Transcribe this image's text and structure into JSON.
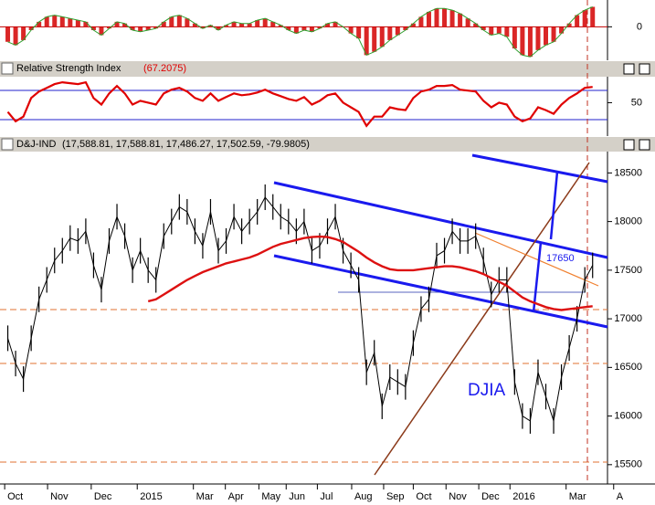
{
  "chart_data": [
    {
      "type": "bar",
      "color": "#d40000",
      "line_color": "#2e9e2e",
      "xlim": [
        -1,
        83
      ],
      "ylim": [
        -190,
        150
      ],
      "yticks": [
        0
      ],
      "values": [
        -90,
        -110,
        -80,
        -20,
        30,
        60,
        70,
        60,
        50,
        40,
        30,
        -20,
        -50,
        -10,
        30,
        20,
        -20,
        -30,
        -20,
        -10,
        30,
        60,
        70,
        50,
        20,
        -10,
        10,
        -20,
        10,
        30,
        20,
        20,
        40,
        50,
        30,
        10,
        -20,
        -40,
        -20,
        -30,
        -10,
        20,
        30,
        0,
        -40,
        -70,
        -170,
        -150,
        -120,
        -80,
        -50,
        -20,
        20,
        60,
        90,
        110,
        110,
        100,
        80,
        50,
        20,
        -20,
        -50,
        -40,
        -60,
        -130,
        -170,
        -180,
        -140,
        -110,
        -90,
        -40,
        20,
        70,
        100,
        120
      ]
    },
    {
      "type": "line",
      "title": "Relative Strength Index",
      "subtitle": "(67.2075)",
      "color": "#e00000",
      "xlim": [
        -1,
        83
      ],
      "ylim": [
        16,
        76
      ],
      "yticks": [
        50
      ],
      "values": [
        40,
        30,
        35,
        55,
        62,
        66,
        70,
        72,
        71,
        70,
        72,
        55,
        48,
        60,
        68,
        60,
        48,
        52,
        50,
        48,
        60,
        64,
        66,
        62,
        55,
        52,
        60,
        52,
        56,
        60,
        58,
        59,
        61,
        64,
        60,
        57,
        54,
        52,
        56,
        48,
        52,
        58,
        60,
        50,
        45,
        40,
        25,
        35,
        35,
        45,
        43,
        42,
        55,
        62,
        64,
        68,
        68,
        69,
        64,
        63,
        62,
        52,
        45,
        50,
        48,
        35,
        30,
        33,
        45,
        42,
        38,
        48,
        55,
        60,
        66,
        67
      ]
    },
    {
      "type": "line",
      "title": "D&J-IND",
      "subtitle": "(17,588.81, 17,588.81, 17,486.27, 17,502.59, -79.9805)",
      "annotations": [
        "DJIA",
        "17650"
      ],
      "xlim": [
        -1,
        83
      ],
      "ylim": [
        15320,
        18710
      ],
      "yticks": [
        15500,
        16000,
        16500,
        17000,
        17500,
        18000,
        18500
      ],
      "xticks": [
        {
          "value": -0.4,
          "label": "Oct"
        },
        {
          "value": 5.1,
          "label": "Nov"
        },
        {
          "value": 10.7,
          "label": "Dec"
        },
        {
          "value": 16.6,
          "label": "2015"
        },
        {
          "value": 23.8,
          "label": "Mar"
        },
        {
          "value": 27.9,
          "label": "Apr"
        },
        {
          "value": 32.2,
          "label": "May"
        },
        {
          "value": 35.7,
          "label": "Jun"
        },
        {
          "value": 39.7,
          "label": "Jul"
        },
        {
          "value": 44.1,
          "label": "Aug"
        },
        {
          "value": 48.2,
          "label": "Sep"
        },
        {
          "value": 52,
          "label": "Oct"
        },
        {
          "value": 56.2,
          "label": "Nov"
        },
        {
          "value": 60.4,
          "label": "Dec"
        },
        {
          "value": 64.4,
          "label": "2016"
        },
        {
          "value": 71.6,
          "label": "Mar"
        },
        {
          "value": 77.7,
          "label": "A"
        }
      ],
      "series": [
        {
          "color": "#000000",
          "values": [
            16800,
            16540,
            16380,
            16800,
            17200,
            17400,
            17600,
            17700,
            17830,
            17800,
            17900,
            17550,
            17300,
            17800,
            18050,
            17850,
            17500,
            17700,
            17500,
            17400,
            17850,
            18000,
            18150,
            18100,
            17900,
            17750,
            18100,
            17700,
            17800,
            18050,
            17900,
            18000,
            18100,
            18250,
            18150,
            18050,
            18000,
            17900,
            18000,
            17700,
            17750,
            17900,
            18050,
            17700,
            17550,
            17400,
            16450,
            16650,
            16100,
            16400,
            16350,
            16300,
            16750,
            17100,
            17200,
            17650,
            17700,
            17900,
            17800,
            17800,
            17850,
            17600,
            17250,
            17400,
            17400,
            16350,
            16000,
            15950,
            16450,
            16200,
            15950,
            16400,
            16700,
            17000,
            17400,
            17550
          ]
        },
        {
          "color": "#dd1111",
          "values": [
            null,
            null,
            null,
            null,
            null,
            null,
            null,
            null,
            null,
            null,
            null,
            null,
            null,
            null,
            null,
            null,
            null,
            null,
            17180,
            17200,
            17250,
            17300,
            17350,
            17400,
            17440,
            17480,
            17510,
            17540,
            17570,
            17590,
            17610,
            17630,
            17660,
            17700,
            17740,
            17770,
            17790,
            17810,
            17830,
            17840,
            17845,
            17840,
            17820,
            17790,
            17740,
            17690,
            17630,
            17580,
            17540,
            17510,
            17500,
            17500,
            17500,
            17510,
            17520,
            17530,
            17540,
            17540,
            17530,
            17510,
            17490,
            17460,
            17420,
            17380,
            17340,
            17280,
            17220,
            17180,
            17150,
            17120,
            17100,
            17090,
            17100,
            17110,
            17120,
            17130
          ]
        }
      ]
    }
  ]
}
